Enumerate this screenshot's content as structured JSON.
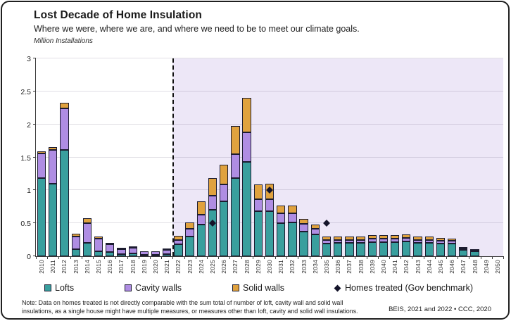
{
  "header": {
    "title": "Lost Decade of Home Insulation",
    "subtitle": "Where we were, where we are, and where we need to be to meet our climate goals.",
    "units_label": "Million Installations"
  },
  "chart_data": {
    "type": "bar",
    "stacked": true,
    "title": "Lost Decade of Home Insulation",
    "ylabel": "Million Installations",
    "ylim": [
      0,
      3
    ],
    "ytick_step": 0.5,
    "ytick_labels": [
      "0",
      "0.5",
      "1",
      "1.5",
      "2",
      "2.5",
      "3"
    ],
    "grid": true,
    "divider_after_year": "2021",
    "future_region_color": "#EDE7F7",
    "categories": [
      "2010",
      "2011",
      "2012",
      "2013",
      "2014",
      "2015",
      "2016",
      "2017",
      "2018",
      "2019",
      "2020",
      "2021",
      "2022",
      "2023",
      "2024",
      "2025",
      "2026",
      "2027",
      "2028",
      "2029",
      "2030",
      "2031",
      "2032",
      "2033",
      "2034",
      "2035",
      "2036",
      "2037",
      "2038",
      "2039",
      "2040",
      "2041",
      "2042",
      "2043",
      "2044",
      "2045",
      "2046",
      "2047",
      "2048",
      "2049",
      "2050"
    ],
    "series": [
      {
        "name": "Lofts",
        "color": "#399F9E",
        "values": [
          1.18,
          1.1,
          1.61,
          0.11,
          0.2,
          0.08,
          0.06,
          0.03,
          0.04,
          0.02,
          0.02,
          0.03,
          0.18,
          0.3,
          0.48,
          0.7,
          0.83,
          1.18,
          1.43,
          0.68,
          0.68,
          0.5,
          0.51,
          0.37,
          0.33,
          0.19,
          0.2,
          0.2,
          0.2,
          0.21,
          0.21,
          0.21,
          0.22,
          0.2,
          0.2,
          0.19,
          0.19,
          0.1,
          0.07,
          0,
          0
        ]
      },
      {
        "name": "Cavity walls",
        "color": "#AF8DE3",
        "values": [
          0.38,
          0.51,
          0.63,
          0.19,
          0.3,
          0.19,
          0.12,
          0.08,
          0.09,
          0.05,
          0.06,
          0.07,
          0.07,
          0.12,
          0.15,
          0.22,
          0.26,
          0.37,
          0.45,
          0.19,
          0.19,
          0.15,
          0.14,
          0.12,
          0.09,
          0.06,
          0.05,
          0.05,
          0.05,
          0.06,
          0.06,
          0.06,
          0.06,
          0.05,
          0.05,
          0.05,
          0.05,
          0.02,
          0.015,
          0,
          0
        ]
      },
      {
        "name": "Solid walls",
        "color": "#E0A23E",
        "values": [
          0.03,
          0.04,
          0.09,
          0.04,
          0.08,
          0.03,
          0.02,
          0.01,
          0.01,
          0,
          0,
          0.01,
          0.06,
          0.09,
          0.2,
          0.26,
          0.3,
          0.43,
          0.52,
          0.22,
          0.23,
          0.12,
          0.12,
          0.08,
          0.06,
          0.05,
          0.05,
          0.05,
          0.05,
          0.05,
          0.05,
          0.05,
          0.05,
          0.05,
          0.05,
          0.04,
          0.03,
          0.01,
          0.005,
          0,
          0
        ]
      }
    ],
    "benchmark": {
      "name": "Homes treated (Gov benchmark)",
      "marker": "diamond",
      "color": "#14142a",
      "points": [
        {
          "year": "2025",
          "value": 0.5
        },
        {
          "year": "2030",
          "value": 1.0
        },
        {
          "year": "2035",
          "value": 0.5
        }
      ]
    }
  },
  "legend": {
    "items": [
      {
        "label": "Lofts",
        "swatch_color": "#399F9E"
      },
      {
        "label": "Cavity walls",
        "swatch_color": "#AF8DE3"
      },
      {
        "label": "Solid walls",
        "swatch_color": "#E0A23E"
      },
      {
        "label": "Homes treated (Gov benchmark)",
        "swatch_color": "#14142a"
      }
    ]
  },
  "footer": {
    "note": "Note: Data on homes treated is not directly comparable with the sum total of number of loft, cavity wall and solid wall insulations, as a single house might have multiple measures, or measures other than loft, cavity and solid wall insulations.",
    "source": "BEIS, 2021 and 2022 • CCC, 2020"
  }
}
